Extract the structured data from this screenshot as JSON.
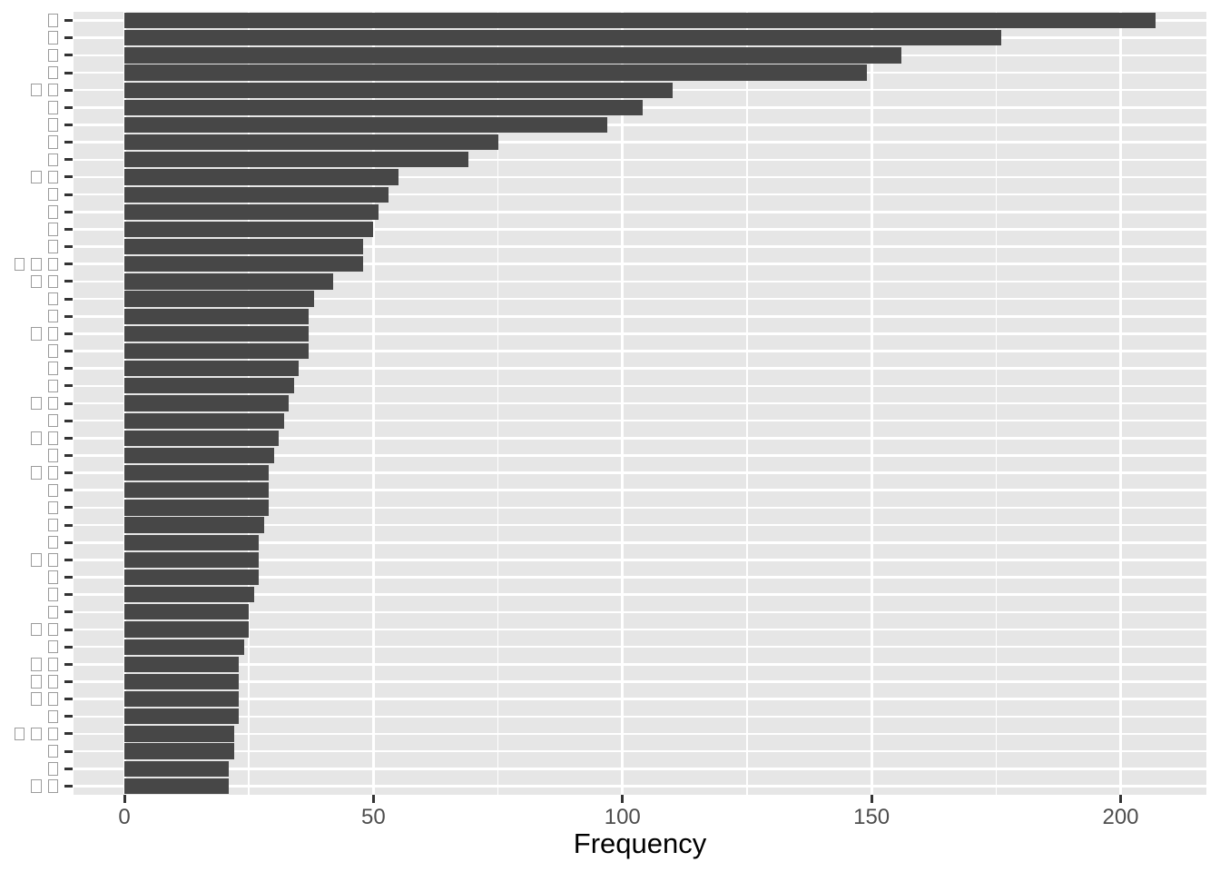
{
  "chart_data": {
    "type": "bar",
    "orientation": "horizontal",
    "title": "",
    "xlabel": "Frequency",
    "ylabel": "",
    "x_ticks": [
      0,
      50,
      100,
      150,
      200
    ],
    "x_minor_ticks": [
      25,
      75,
      125,
      175
    ],
    "xlim": [
      -10,
      217
    ],
    "grid": "on",
    "legend": "none",
    "categories": [
      "□",
      "□",
      "□",
      "□",
      "□□",
      "□",
      "□",
      "□",
      "□",
      "□□",
      "□",
      "□",
      "□",
      "□",
      "□□□",
      "□□",
      "□",
      "□",
      "□□",
      "□",
      "□",
      "□",
      "□□",
      "□",
      "□□",
      "□",
      "□□",
      "□",
      "□",
      "□",
      "□",
      "□□",
      "□",
      "□",
      "□",
      "□□",
      "□",
      "□□",
      "□□",
      "□□",
      "□",
      "□□□",
      "□",
      "□",
      "□□"
    ],
    "values": [
      207,
      176,
      156,
      149,
      110,
      104,
      97,
      75,
      69,
      55,
      53,
      51,
      50,
      48,
      48,
      42,
      38,
      37,
      37,
      37,
      35,
      34,
      33,
      32,
      31,
      30,
      29,
      29,
      29,
      28,
      27,
      27,
      27,
      26,
      25,
      25,
      24,
      23,
      23,
      23,
      23,
      22,
      22,
      21,
      21
    ],
    "colors": {
      "bar_fill": "#474747",
      "panel_background": "#e6e6e6",
      "gridline": "#ffffff",
      "tick_mark": "#333333",
      "tick_label": "#4d4d4d",
      "axis_title": "#000000",
      "missing_glyph_box": "#9b9b9b"
    }
  }
}
